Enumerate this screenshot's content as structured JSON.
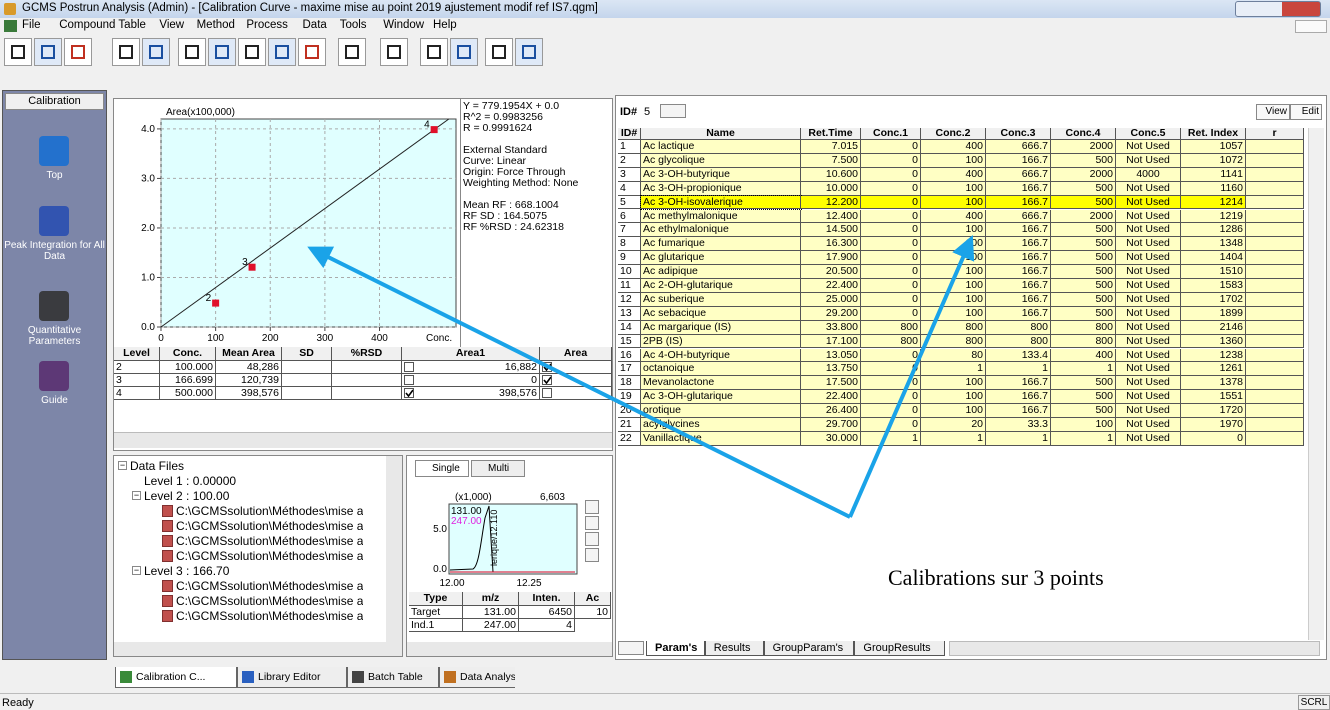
{
  "window": {
    "title": "GCMS Postrun Analysis (Admin) - [Calibration Curve - maxime mise au point 2019 ajustement modif ref IS7.qgm]",
    "menu": [
      "File",
      "Compound Table",
      "View",
      "Method",
      "Process",
      "Data",
      "Tools",
      "Window",
      "Help"
    ]
  },
  "sidebar": {
    "header": "Calibration",
    "items": [
      "Top",
      "Peak Integration for All Data",
      "Quantitative Parameters",
      "Guide"
    ]
  },
  "calibration_plot": {
    "type": "scatter",
    "y_label": "Area(x100,000)",
    "x_label": "Conc.",
    "xlim": [
      0,
      540
    ],
    "ylim": [
      0,
      4.2
    ],
    "xticks": [
      0,
      100,
      200,
      300,
      400
    ],
    "yticks": [
      {
        "value": 0,
        "label": "0.0"
      },
      {
        "value": 1,
        "label": "1.0"
      },
      {
        "value": 2,
        "label": "2.0"
      },
      {
        "value": 3,
        "label": "3.0"
      },
      {
        "value": 4,
        "label": "4.0"
      }
    ],
    "x": [
      100,
      166.699,
      500
    ],
    "y": [
      0.48286,
      1.20739,
      3.98576
    ],
    "point_labels": [
      "2",
      "3",
      "4"
    ],
    "color": "#e0102a",
    "grid": true
  },
  "fit_info": {
    "equation": [
      "Y = 779.1954X + 0.0",
      "R^2 = 0.9983256",
      "R = 0.9991624"
    ],
    "method": [
      "External Standard",
      "Curve: Linear",
      "Origin: Force Through",
      "Weighting Method: None"
    ],
    "rf": [
      "Mean RF :  668.1004",
      "RF SD : 164.5075",
      "RF %RSD : 24.62318"
    ]
  },
  "level_table": {
    "columns": [
      "Level",
      "Conc.",
      "Mean Area",
      "SD",
      "%RSD",
      "Area1",
      "Area"
    ],
    "rows": [
      {
        "level": "2",
        "conc": "100.000",
        "mean_area": "48,286",
        "area1": "16,882"
      },
      {
        "level": "3",
        "conc": "166.699",
        "mean_area": "120,739",
        "area1": "0"
      },
      {
        "level": "4",
        "conc": "500.000",
        "mean_area": "398,576",
        "area1": "398,576"
      }
    ],
    "area1_checked": [
      false,
      false,
      true
    ],
    "area2_checked": [
      true,
      true,
      false
    ]
  },
  "data_files": {
    "root": "Data Files",
    "levels": [
      {
        "label": "Level 1 : 0.00000"
      },
      {
        "label": "Level 2 : 100.00",
        "files": [
          "C:\\GCMSsolution\\Méthodes\\mise a",
          "C:\\GCMSsolution\\Méthodes\\mise a",
          "C:\\GCMSsolution\\Méthodes\\mise a",
          "C:\\GCMSsolution\\Méthodes\\mise a"
        ]
      },
      {
        "label": "Level 3 : 166.70",
        "files": [
          "C:\\GCMSsolution\\Méthodes\\mise a",
          "C:\\GCMSsolution\\Méthodes\\mise a",
          "C:\\GCMSsolution\\Méthodes\\mise a"
        ]
      }
    ]
  },
  "spectrum": {
    "tabs": [
      "Single",
      "Multi"
    ],
    "scale": "(x1,000)",
    "max": "6,603",
    "ions": [
      "131.00",
      "247.00"
    ],
    "peak_label": "lerique/12.110",
    "yticks": [
      "5.0",
      "0.0"
    ],
    "xticks": [
      "12.00",
      "12.25"
    ],
    "table": {
      "columns": [
        "Type",
        "m/z",
        "Inten.",
        "Ac"
      ],
      "rows": [
        [
          "Target",
          "131.00",
          "6450",
          "10"
        ],
        [
          "Ind.1",
          "247.00",
          "4"
        ]
      ]
    }
  },
  "compound_panel": {
    "id_label": "ID#",
    "id_value": "5",
    "buttons": [
      "View",
      "Edit"
    ],
    "table": {
      "columns": [
        "ID#",
        "Name",
        "Ret.Time",
        "Conc.1",
        "Conc.2",
        "Conc.3",
        "Conc.4",
        "Conc.5",
        "Ret. Index",
        "r"
      ],
      "selected_row": 4,
      "rows": [
        [
          "1",
          "Ac lactique",
          "7.015",
          "0",
          "400",
          "666.7",
          "2000",
          "Not Used",
          "1057"
        ],
        [
          "2",
          "Ac glycolique",
          "7.500",
          "0",
          "100",
          "166.7",
          "500",
          "Not Used",
          "1072"
        ],
        [
          "3",
          "Ac 3-OH-butyrique",
          "10.600",
          "0",
          "400",
          "666.7",
          "2000",
          "4000",
          "1141"
        ],
        [
          "4",
          "Ac 3-OH-propionique",
          "10.000",
          "0",
          "100",
          "166.7",
          "500",
          "Not Used",
          "1160"
        ],
        [
          "5",
          "Ac 3-OH-isovalerique",
          "12.200",
          "0",
          "100",
          "166.7",
          "500",
          "Not Used",
          "1214"
        ],
        [
          "6",
          "Ac methylmalonique",
          "12.400",
          "0",
          "400",
          "666.7",
          "2000",
          "Not Used",
          "1219"
        ],
        [
          "7",
          "Ac ethylmalonique",
          "14.500",
          "0",
          "100",
          "166.7",
          "500",
          "Not Used",
          "1286"
        ],
        [
          "8",
          "Ac fumarique",
          "16.300",
          "0",
          "100",
          "166.7",
          "500",
          "Not Used",
          "1348"
        ],
        [
          "9",
          "Ac glutarique",
          "17.900",
          "0",
          "100",
          "166.7",
          "500",
          "Not Used",
          "1404"
        ],
        [
          "10",
          "Ac adipique",
          "20.500",
          "0",
          "100",
          "166.7",
          "500",
          "Not Used",
          "1510"
        ],
        [
          "11",
          "Ac 2-OH-glutarique",
          "22.400",
          "0",
          "100",
          "166.7",
          "500",
          "Not Used",
          "1583"
        ],
        [
          "12",
          "Ac suberique",
          "25.000",
          "0",
          "100",
          "166.7",
          "500",
          "Not Used",
          "1702"
        ],
        [
          "13",
          "Ac sebacique",
          "29.200",
          "0",
          "100",
          "166.7",
          "500",
          "Not Used",
          "1899"
        ],
        [
          "14",
          "Ac margarique (IS)",
          "33.800",
          "800",
          "800",
          "800",
          "800",
          "Not Used",
          "2146"
        ],
        [
          "15",
          "2PB (IS)",
          "17.100",
          "800",
          "800",
          "800",
          "800",
          "Not Used",
          "1360"
        ],
        [
          "16",
          "Ac 4-OH-butyrique",
          "13.050",
          "0",
          "80",
          "133.4",
          "400",
          "Not Used",
          "1238"
        ],
        [
          "17",
          "octanoique",
          "13.750",
          "0",
          "1",
          "1",
          "1",
          "Not Used",
          "1261"
        ],
        [
          "18",
          "Mevanolactone",
          "17.500",
          "0",
          "100",
          "166.7",
          "500",
          "Not Used",
          "1378"
        ],
        [
          "19",
          "Ac 3-OH-glutarique",
          "22.400",
          "0",
          "100",
          "166.7",
          "500",
          "Not Used",
          "1551"
        ],
        [
          "20",
          "orotique",
          "26.400",
          "0",
          "100",
          "166.7",
          "500",
          "Not Used",
          "1720"
        ],
        [
          "21",
          "acylglycines",
          "29.700",
          "0",
          "20",
          "33.3",
          "100",
          "Not Used",
          "1970"
        ],
        [
          "22",
          "Vanillactique",
          "30.000",
          "1",
          "1",
          "1",
          "1",
          "Not Used",
          "0"
        ]
      ]
    },
    "tabs": [
      "Param's",
      "Results",
      "GroupParam's",
      "GroupResults"
    ]
  },
  "window_tabs": [
    "Calibration C...",
    "Library Editor",
    "Batch Table",
    "Data Analysis"
  ],
  "status": {
    "text": "Ready",
    "indicator": "SCRL"
  },
  "annotation": "Calibrations sur 3 points"
}
